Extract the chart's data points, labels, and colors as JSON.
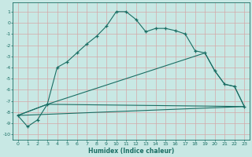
{
  "xlabel": "Humidex (Indice chaleur)",
  "xlim": [
    -0.5,
    23.5
  ],
  "ylim": [
    -10.5,
    1.8
  ],
  "yticks": [
    1,
    0,
    -1,
    -2,
    -3,
    -4,
    -5,
    -6,
    -7,
    -8,
    -9,
    -10
  ],
  "xticks": [
    0,
    1,
    2,
    3,
    4,
    5,
    6,
    7,
    8,
    9,
    10,
    11,
    12,
    13,
    14,
    15,
    16,
    17,
    18,
    19,
    20,
    21,
    22,
    23
  ],
  "bg_color": "#c8e8e4",
  "line_color": "#1a6e64",
  "grid_color": "#b0d8d4",
  "curve1_x": [
    0,
    1,
    2,
    3,
    4,
    5,
    6,
    7,
    8,
    9,
    10,
    11,
    12,
    13,
    14,
    15,
    16,
    17,
    18,
    19,
    20,
    21,
    22,
    23
  ],
  "curve1_y": [
    -8.3,
    -9.3,
    -8.7,
    -7.3,
    -4.0,
    -3.5,
    -2.7,
    -1.9,
    -1.2,
    -0.3,
    1.0,
    1.0,
    0.3,
    -0.8,
    -0.5,
    -0.5,
    -0.7,
    -1.0,
    -2.5,
    -2.7,
    -4.3,
    -5.5,
    -5.7,
    -7.5
  ],
  "curve2_x": [
    0,
    3,
    19,
    20,
    21,
    22,
    23
  ],
  "curve2_y": [
    -8.3,
    -7.3,
    -2.7,
    -4.3,
    -5.5,
    -5.7,
    -7.5
  ],
  "curve3_x": [
    0,
    3,
    23
  ],
  "curve3_y": [
    -8.3,
    -7.3,
    -7.5
  ],
  "curve4_x": [
    0,
    23
  ],
  "curve4_y": [
    -8.3,
    -7.5
  ]
}
